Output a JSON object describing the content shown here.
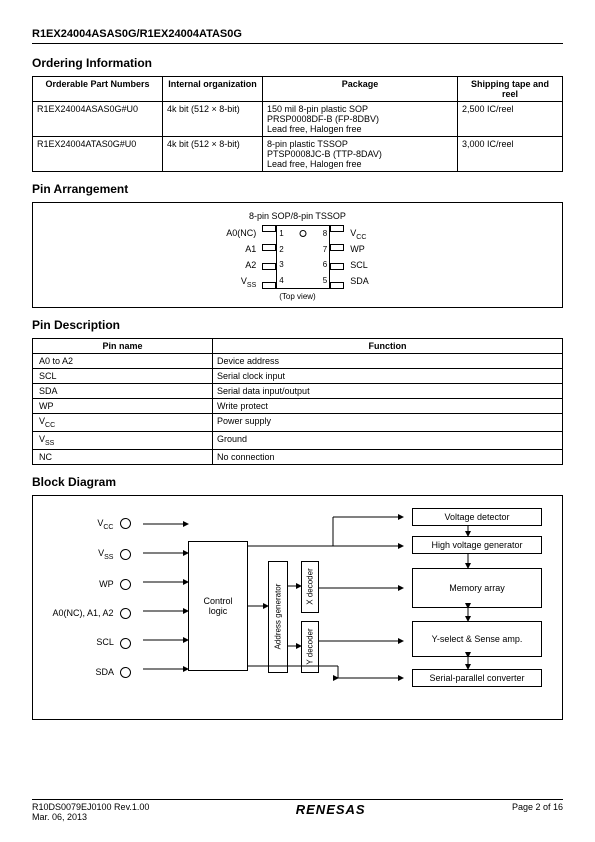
{
  "header": {
    "product": "R1EX24004ASAS0G/R1EX24004ATAS0G"
  },
  "ordering": {
    "heading": "Ordering Information",
    "columns": [
      "Orderable Part Numbers",
      "Internal organization",
      "Package",
      "Shipping tape and reel"
    ],
    "rows": [
      [
        "R1EX24004ASAS0G#U0",
        "4k bit (512 × 8-bit)",
        "150 mil 8-pin plastic SOP\nPRSP0008DF-B (FP-8DBV)\nLead free, Halogen free",
        "2,500 IC/reel"
      ],
      [
        "R1EX24004ATAS0G#U0",
        "4k bit (512 × 8-bit)",
        "8-pin plastic TSSOP\nPTSP0008JC-B (TTP-8DAV)\nLead free, Halogen free",
        "3,000 IC/reel"
      ]
    ]
  },
  "pinArrangement": {
    "heading": "Pin Arrangement",
    "title": "8-pin SOP/8-pin TSSOP",
    "left": [
      "A0(NC)",
      "A1",
      "A2",
      "Vss"
    ],
    "leftSub": [
      "",
      "",
      "",
      "SS"
    ],
    "nums_l": [
      "1",
      "2",
      "3",
      "4"
    ],
    "nums_r": [
      "8",
      "7",
      "6",
      "5"
    ],
    "right": [
      "Vcc",
      "WP",
      "SCL",
      "SDA"
    ],
    "rightSub": [
      "CC",
      "",
      "",
      ""
    ],
    "caption": "(Top view)"
  },
  "pinDescription": {
    "heading": "Pin Description",
    "columns": [
      "Pin name",
      "Function"
    ],
    "rows": [
      [
        "A0 to A2",
        "Device address"
      ],
      [
        "SCL",
        "Serial clock input"
      ],
      [
        "SDA",
        "Serial data input/output"
      ],
      [
        "WP",
        "Write protect"
      ],
      [
        "Vcc",
        "Power supply"
      ],
      [
        "Vss",
        "Ground"
      ],
      [
        "NC",
        "No connection"
      ]
    ]
  },
  "blockDiagram": {
    "heading": "Block Diagram",
    "inputs": [
      "Vcc",
      "Vss",
      "WP",
      "A0(NC), A1, A2",
      "SCL",
      "SDA"
    ],
    "inputsSub": [
      "CC",
      "SS",
      "",
      "",
      "",
      ""
    ],
    "blocks": {
      "control": "Control\nlogic",
      "addrgen": "Address generator",
      "xdec": "X decoder",
      "ydec": "Y decoder",
      "voltdet": "Voltage detector",
      "hvgen": "High voltage generator",
      "memarr": "Memory array",
      "ysel": "Y-select & Sense amp.",
      "spc": "Serial-parallel converter"
    }
  },
  "footer": {
    "rev": "R10DS0079EJ0100 Rev.1.00",
    "date": "Mar. 06, 2013",
    "logo": "RENESAS",
    "page": "Page 2 of 16"
  }
}
